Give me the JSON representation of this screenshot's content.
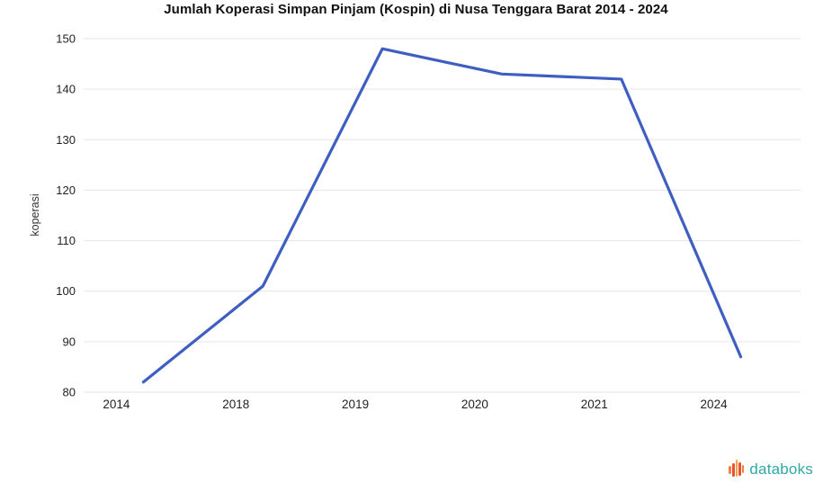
{
  "chart_data": {
    "type": "line",
    "title": "Jumlah Koperasi Simpan Pinjam (Kospin) di Nusa Tenggara Barat 2014 - 2024",
    "xlabel": "",
    "ylabel": "koperasi",
    "categories": [
      "2014",
      "2018",
      "2019",
      "2020",
      "2021",
      "2024"
    ],
    "series": [
      {
        "name": "koperasi",
        "values": [
          82,
          101,
          148,
          143,
          142,
          87
        ]
      }
    ],
    "ylim": [
      80,
      150
    ],
    "yticks": [
      80,
      90,
      100,
      110,
      120,
      130,
      140,
      150
    ],
    "grid": true,
    "legend": "none",
    "line_color": "#3e5fc1",
    "grid_color": "#e6e6e6",
    "tick_label_color": "#222222"
  },
  "footer": {
    "brand": "databoks",
    "brand_color": "#2fa9a4"
  }
}
